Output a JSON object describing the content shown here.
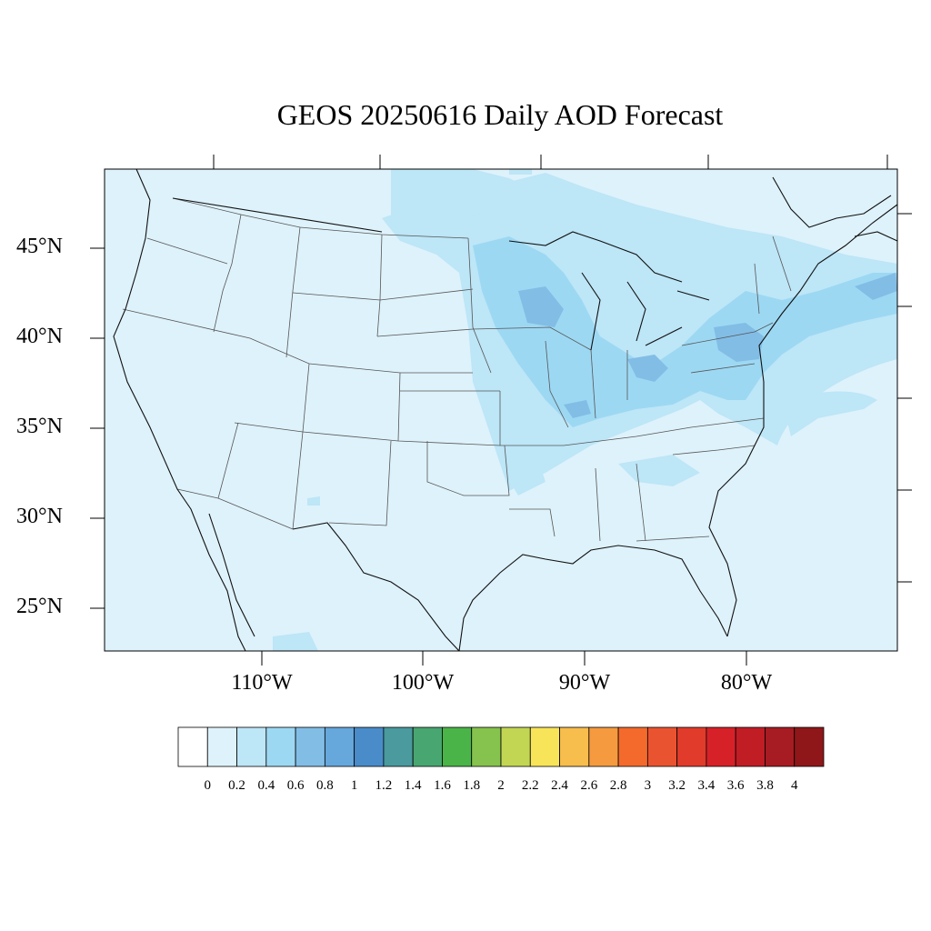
{
  "title": "GEOS 20250616 Daily AOD Forecast",
  "lat_labels": [
    "45°N",
    "40°N",
    "35°N",
    "30°N",
    "25°N"
  ],
  "lon_labels": [
    "110°W",
    "100°W",
    "90°W",
    "80°W"
  ],
  "colorbar": {
    "labels": [
      "0",
      "0.2",
      "0.4",
      "0.6",
      "0.8",
      "1",
      "1.2",
      "1.4",
      "1.6",
      "1.8",
      "2",
      "2.2",
      "2.4",
      "2.6",
      "2.8",
      "3",
      "3.2",
      "3.4",
      "3.6",
      "3.8",
      "4"
    ],
    "colors": [
      "#ffffff",
      "#def2fb",
      "#bde6f7",
      "#9dd8f3",
      "#82bde6",
      "#66a7dc",
      "#4a8cc9",
      "#4a9a9e",
      "#48a671",
      "#4ab448",
      "#85c34e",
      "#c3d653",
      "#f8e458",
      "#f7bd4d",
      "#f59a3f",
      "#f36a2c",
      "#ea5330",
      "#e03b2b",
      "#d62129",
      "#c01d25",
      "#a61c22",
      "#8f1719"
    ]
  },
  "map_colors": {
    "background": "#def2fb",
    "light_aod": "#bde6f7",
    "moderate_aod": "#9dd8f3",
    "higher_aod": "#82bde6"
  }
}
